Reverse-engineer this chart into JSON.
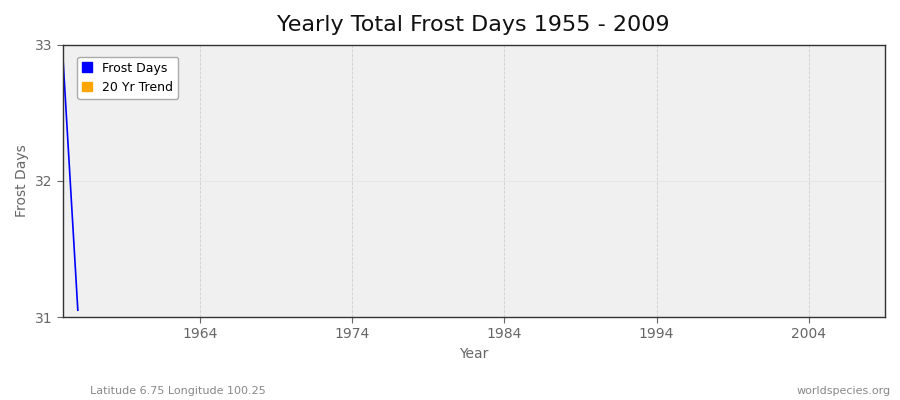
{
  "title": "Yearly Total Frost Days 1955 - 2009",
  "xlabel": "Year",
  "ylabel": "Frost Days",
  "subtitle_left": "Latitude 6.75 Longitude 100.25",
  "subtitle_right": "worldspecies.org",
  "ylim": [
    31,
    33
  ],
  "xlim": [
    1955,
    2009
  ],
  "yticks": [
    31,
    32,
    33
  ],
  "xticks": [
    1964,
    1974,
    1984,
    1994,
    2004
  ],
  "frost_days_years": [
    1955,
    1956
  ],
  "frost_days_values": [
    32.95,
    31.05
  ],
  "trend_years": [],
  "trend_values": [],
  "line_color": "#0000ff",
  "trend_color": "#FFA500",
  "fig_background": "#ffffff",
  "plot_background": "#f0f0f0",
  "grid_color_v": "#cccccc",
  "grid_color_h": "#dddddd",
  "legend_labels": [
    "Frost Days",
    "20 Yr Trend"
  ],
  "spine_color": "#333333",
  "tick_color": "#666666",
  "title_fontsize": 16,
  "label_fontsize": 10
}
